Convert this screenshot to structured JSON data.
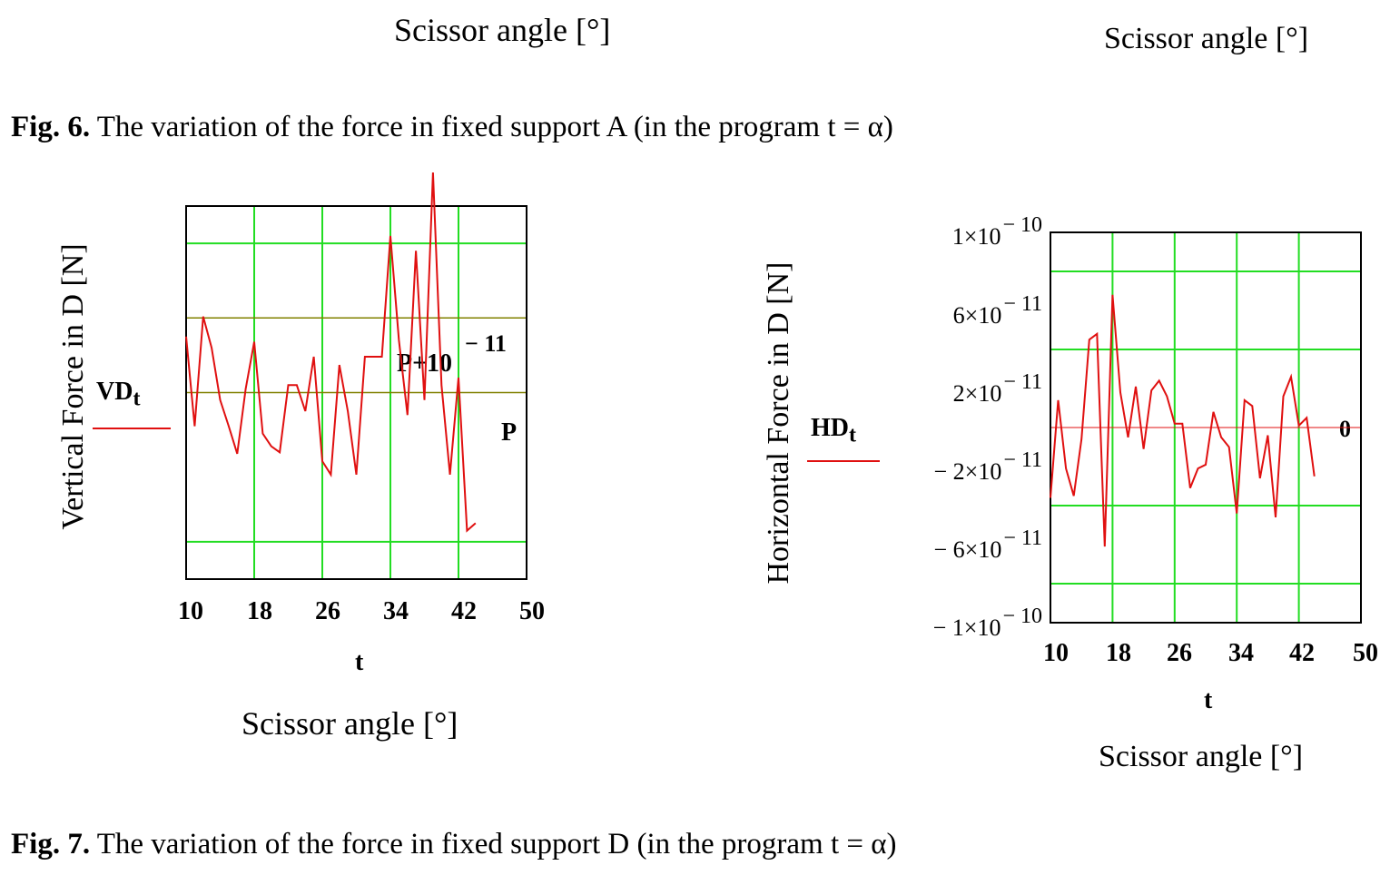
{
  "top_labels": {
    "left": "Scissor angle [°]",
    "right": "Scissor angle [°]"
  },
  "fig6_caption": {
    "label": "Fig. 6.",
    "text": " The variation of the force in fixed support A (in the program t = α)"
  },
  "fig7_caption": {
    "label": "Fig. 7.",
    "text": " The variation of the force in fixed support D (in the program t = α)"
  },
  "colors": {
    "series": "#e01010",
    "grid": "#22dd22",
    "marker": "#808000",
    "frame": "#000000"
  },
  "chart_data": [
    {
      "type": "line",
      "ylabel": "Vertical Force in D [N]",
      "xlabel": "t",
      "xcaption": "Scissor angle [°]",
      "legend": {
        "base": "VD",
        "sub": "t"
      },
      "xlim": [
        10,
        50
      ],
      "xticks": [
        "10",
        "18",
        "26",
        "34",
        "42",
        "50"
      ],
      "ylim": [
        -2.5,
        2.5
      ],
      "grid": true,
      "markers": [
        {
          "text": "P+10",
          "sup": "− 11",
          "y": 1
        },
        {
          "text": "P",
          "y": 0
        }
      ],
      "series": [
        {
          "x": [
            10,
            11,
            12,
            13,
            14,
            15,
            16,
            17,
            18,
            19,
            20,
            21,
            22,
            23,
            24,
            25,
            26,
            27,
            28,
            29,
            30,
            31,
            32,
            33,
            34,
            35,
            36,
            37,
            38,
            39,
            40,
            41,
            42,
            43,
            44
          ],
          "y": [
            0.75,
            -0.45,
            1.02,
            0.6,
            -0.1,
            -0.45,
            -0.82,
            0.05,
            0.68,
            -0.55,
            -0.72,
            -0.8,
            0.1,
            0.1,
            -0.25,
            0.48,
            -0.92,
            -1.1,
            0.37,
            -0.25,
            -1.1,
            0.48,
            0.48,
            0.48,
            2.1,
            0.7,
            -0.3,
            1.9,
            -0.1,
            2.95,
            0.1,
            -1.1,
            0.2,
            -1.85,
            -1.75
          ]
        }
      ]
    },
    {
      "type": "line",
      "ylabel": "Horizontal Force in D [N]",
      "xlabel": "t",
      "xcaption": "Scissor angle [°]",
      "legend": {
        "base": "HD",
        "sub": "t"
      },
      "xlim": [
        10,
        50
      ],
      "xticks": [
        "10",
        "18",
        "26",
        "34",
        "42",
        "50"
      ],
      "ylim": [
        -1e-10,
        1e-10
      ],
      "yticks": [
        {
          "mant": "1×10",
          "exp": "− 10"
        },
        {
          "mant": "6×10",
          "exp": "− 11"
        },
        {
          "mant": "2×10",
          "exp": "− 11"
        },
        {
          "mant": "− 2×10",
          "exp": "− 11"
        },
        {
          "mant": "− 6×10",
          "exp": "− 11"
        },
        {
          "mant": "− 1×10",
          "exp": "− 10"
        }
      ],
      "grid": true,
      "markers": [
        {
          "text": "0",
          "y": 0
        }
      ],
      "series": [
        {
          "x": [
            10,
            11,
            12,
            13,
            14,
            15,
            16,
            17,
            18,
            19,
            20,
            21,
            22,
            23,
            24,
            25,
            26,
            27,
            28,
            29,
            30,
            31,
            32,
            33,
            34,
            35,
            36,
            37,
            38,
            39,
            40,
            41,
            42,
            43,
            44
          ],
          "y": [
            -3.6e-11,
            1.4e-11,
            -2.1e-11,
            -3.5e-11,
            -6e-12,
            4.5e-11,
            4.8e-11,
            -6.1e-11,
            6.8e-11,
            1.8e-11,
            -5e-12,
            2.1e-11,
            -1.1e-11,
            1.9e-11,
            2.4e-11,
            1.6e-11,
            2e-12,
            2e-12,
            -3.1e-11,
            -2.1e-11,
            -1.9e-11,
            8e-12,
            -5e-12,
            -1e-11,
            -4.4e-11,
            1.4e-11,
            1.1e-11,
            -2.6e-11,
            -4e-12,
            -4.6e-11,
            1.6e-11,
            2.6e-11,
            1e-12,
            5e-12,
            -2.5e-11
          ]
        }
      ]
    }
  ]
}
